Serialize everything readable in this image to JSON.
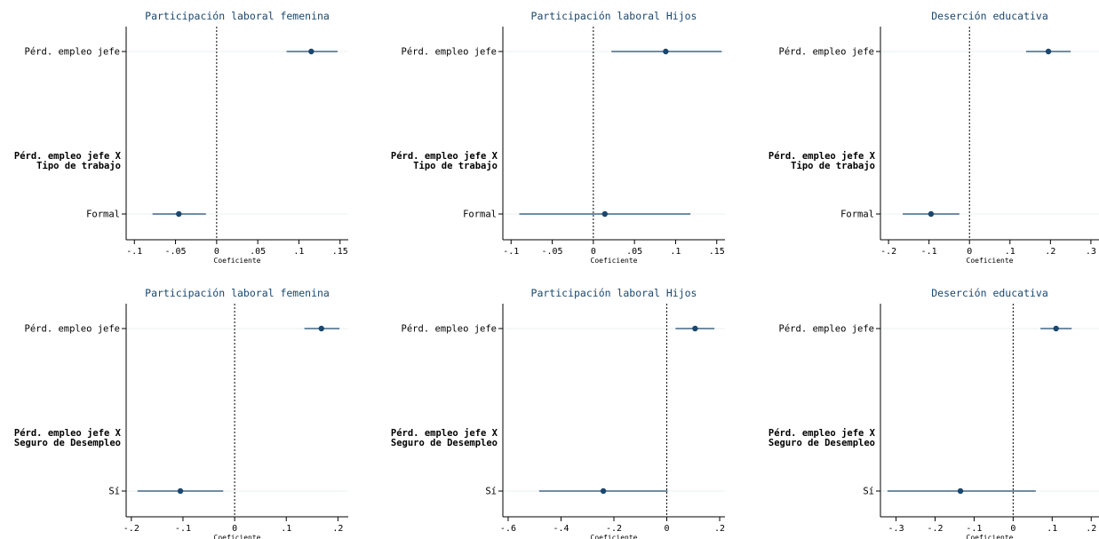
{
  "chart_data": [
    {
      "type": "coefplot",
      "title": "Participación laboral femenina",
      "xlabel": "Coeficiente",
      "xlim": [
        -0.11,
        0.16
      ],
      "xticks": [
        {
          "v": -0.1,
          "label": "-.1"
        },
        {
          "v": -0.05,
          "label": "-.05"
        },
        {
          "v": 0,
          "label": "0"
        },
        {
          "v": 0.05,
          "label": ".05"
        },
        {
          "v": 0.1,
          "label": ".1"
        },
        {
          "v": 0.15,
          "label": ".15"
        }
      ],
      "group_label": [
        "Pérd. empleo jefe X",
        "Tipo de trabajo"
      ],
      "rows": [
        {
          "label": "Pérd. empleo jefe",
          "estimate": 0.115,
          "ci": [
            0.085,
            0.147
          ]
        },
        {
          "label": "Formal",
          "estimate": -0.046,
          "ci": [
            -0.078,
            -0.013
          ]
        }
      ]
    },
    {
      "type": "coefplot",
      "title": "Participación laboral Hijos",
      "xlabel": "Coeficiente",
      "xlim": [
        -0.11,
        0.16
      ],
      "xticks": [
        {
          "v": -0.1,
          "label": "-.1"
        },
        {
          "v": -0.05,
          "label": "-.05"
        },
        {
          "v": 0,
          "label": "0"
        },
        {
          "v": 0.05,
          "label": ".05"
        },
        {
          "v": 0.1,
          "label": ".1"
        },
        {
          "v": 0.15,
          "label": ".15"
        }
      ],
      "group_label": [
        "Pérd. empleo jefe X",
        "Tipo de trabajo"
      ],
      "rows": [
        {
          "label": "Pérd. empleo jefe",
          "estimate": 0.088,
          "ci": [
            0.022,
            0.156
          ]
        },
        {
          "label": "Formal",
          "estimate": 0.014,
          "ci": [
            -0.09,
            0.118
          ]
        }
      ]
    },
    {
      "type": "coefplot",
      "title": "Deserción educativa",
      "xlabel": "Coeficiente",
      "xlim": [
        -0.22,
        0.32
      ],
      "xticks": [
        {
          "v": -0.2,
          "label": "-.2"
        },
        {
          "v": -0.1,
          "label": "-.1"
        },
        {
          "v": 0,
          "label": "0"
        },
        {
          "v": 0.1,
          "label": ".1"
        },
        {
          "v": 0.2,
          "label": ".2"
        },
        {
          "v": 0.3,
          "label": ".3"
        }
      ],
      "group_label": [
        "Pérd. empleo jefe X",
        "Tipo de trabajo"
      ],
      "rows": [
        {
          "label": "Pérd. empleo jefe",
          "estimate": 0.195,
          "ci": [
            0.14,
            0.25
          ]
        },
        {
          "label": "Formal",
          "estimate": -0.095,
          "ci": [
            -0.165,
            -0.025
          ]
        }
      ]
    },
    {
      "type": "coefplot",
      "title": "Participación laboral femenina",
      "xlabel": "Coeficiente",
      "xlim": [
        -0.21,
        0.22
      ],
      "xticks": [
        {
          "v": -0.2,
          "label": "-.2"
        },
        {
          "v": -0.1,
          "label": "-.1"
        },
        {
          "v": 0,
          "label": "0"
        },
        {
          "v": 0.1,
          "label": ".1"
        },
        {
          "v": 0.2,
          "label": ".2"
        }
      ],
      "group_label": [
        "Pérd. empleo jefe X",
        "Seguro de Desempleo"
      ],
      "rows": [
        {
          "label": "Pérd. empleo jefe",
          "estimate": 0.168,
          "ci": [
            0.135,
            0.203
          ]
        },
        {
          "label": "Sí",
          "estimate": -0.105,
          "ci": [
            -0.188,
            -0.022
          ]
        }
      ]
    },
    {
      "type": "coefplot",
      "title": "Participación laboral Hijos",
      "xlabel": "Coeficiente",
      "xlim": [
        -0.62,
        0.22
      ],
      "xticks": [
        {
          "v": -0.6,
          "label": "-.6"
        },
        {
          "v": -0.4,
          "label": "-.4"
        },
        {
          "v": -0.2,
          "label": "-.2"
        },
        {
          "v": 0,
          "label": "0"
        },
        {
          "v": 0.2,
          "label": ".2"
        }
      ],
      "group_label": [
        "Pérd. empleo jefe X",
        "Seguro de Desempleo"
      ],
      "rows": [
        {
          "label": "Pérd. empleo jefe",
          "estimate": 0.107,
          "ci": [
            0.033,
            0.18
          ]
        },
        {
          "label": "Sí",
          "estimate": -0.24,
          "ci": [
            -0.483,
            0.003
          ]
        }
      ]
    },
    {
      "type": "coefplot",
      "title": "Deserción educativa",
      "xlabel": "Coeficiente",
      "xlim": [
        -0.34,
        0.22
      ],
      "xticks": [
        {
          "v": -0.3,
          "label": "-.3"
        },
        {
          "v": -0.2,
          "label": "-.2"
        },
        {
          "v": -0.1,
          "label": "-.1"
        },
        {
          "v": 0,
          "label": "0"
        },
        {
          "v": 0.1,
          "label": ".1"
        },
        {
          "v": 0.2,
          "label": ".2"
        }
      ],
      "group_label": [
        "Pérd. empleo jefe X",
        "Seguro de Desempleo"
      ],
      "rows": [
        {
          "label": "Pérd. empleo jefe",
          "estimate": 0.11,
          "ci": [
            0.07,
            0.15
          ]
        },
        {
          "label": "Sí",
          "estimate": -0.135,
          "ci": [
            -0.322,
            0.058
          ]
        }
      ]
    }
  ],
  "colors": {
    "marker": "#1a476f",
    "ci": "#1a476f",
    "title": "#1a476f",
    "gridline": "#eaf2f3",
    "axis": "#000000"
  }
}
